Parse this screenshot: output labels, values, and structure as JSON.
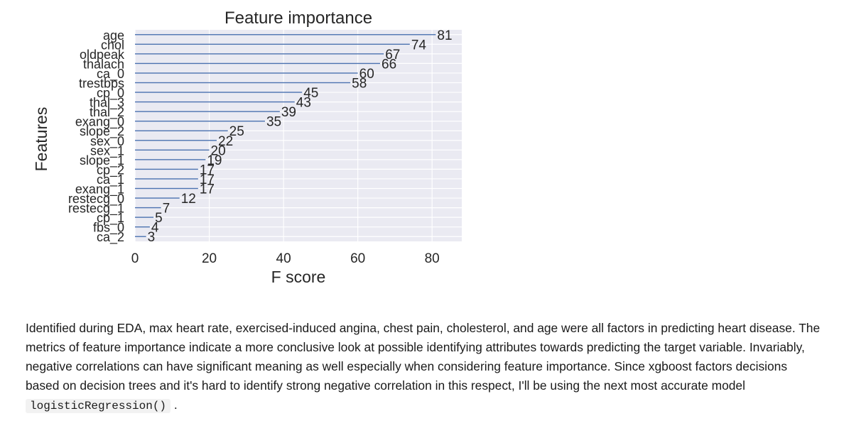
{
  "chart_data": {
    "type": "bar",
    "orientation": "horizontal",
    "title": "Feature importance",
    "xlabel": "F score",
    "ylabel": "Features",
    "xlim": [
      0,
      88
    ],
    "xticks": [
      "0",
      "20",
      "40",
      "60",
      "80"
    ],
    "grid": true,
    "categories": [
      "age",
      "chol",
      "oldpeak",
      "thalach",
      "ca_0",
      "trestbps",
      "cp_0",
      "thal_3",
      "thal_2",
      "exang_0",
      "slope_2",
      "sex_0",
      "sex_1",
      "slope_1",
      "cp_2",
      "ca_1",
      "exang_1",
      "restecg_0",
      "restecg_1",
      "cp_1",
      "fbs_0",
      "ca_2"
    ],
    "values": [
      81,
      74,
      67,
      66,
      60,
      58,
      45,
      43,
      39,
      35,
      25,
      22,
      20,
      19,
      17,
      17,
      17,
      12,
      7,
      5,
      4,
      3
    ],
    "bar_color": "#4c72b0",
    "background_color": "#eaeaf2"
  },
  "description": {
    "text": "Identified during EDA, max heart rate, exercised-induced angina, chest pain, cholesterol, and age were all factors in predicting heart disease. The metrics of feature importance indicate a more conclusive look at possible identifying attributes towards predicting the target variable. Invariably, negative correlations can have significant meaning as well especially when considering feature importance. Since xgboost factors decisions based on decision trees and it's hard to identify strong negative correlation in this respect, I'll be using the next most accurate model",
    "code": "logisticRegression()",
    "end": "."
  }
}
